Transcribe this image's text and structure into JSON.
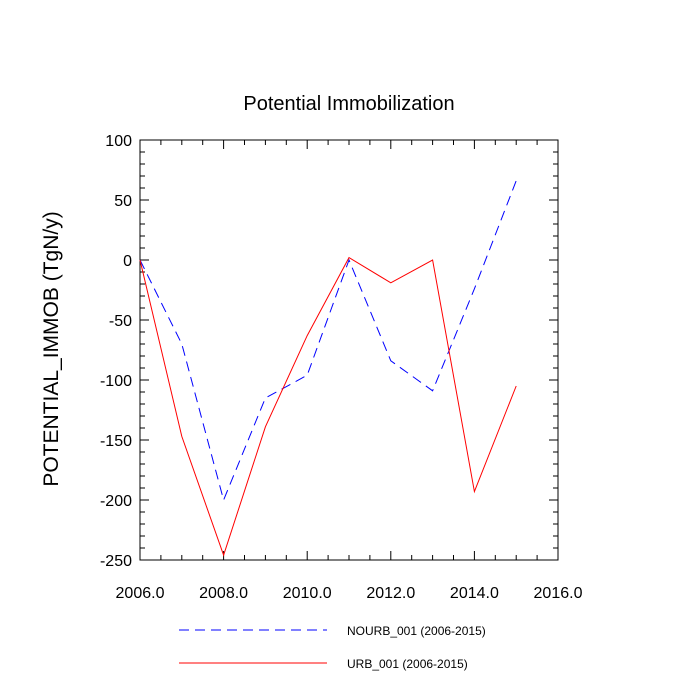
{
  "chart_data": {
    "type": "line",
    "title": "Potential Immobilization",
    "xlabel": "",
    "ylabel": "POTENTIAL_IMMOB  (TgN/y)",
    "xlim": [
      2006,
      2016
    ],
    "ylim": [
      -250,
      100
    ],
    "x_ticks": [
      "2006.0",
      "2008.0",
      "2010.0",
      "2012.0",
      "2014.0",
      "2016.0"
    ],
    "y_ticks": [
      "100",
      "50",
      "0",
      "-50",
      "-100",
      "-150",
      "-200",
      "-250"
    ],
    "grid": false,
    "legend_position": "bottom",
    "x": [
      2006,
      2007,
      2008,
      2009,
      2010,
      2011,
      2012,
      2013,
      2014,
      2015
    ],
    "series": [
      {
        "name": "NOURB_001 (2006-2015)",
        "color": "#0000ff",
        "dash": "dashed",
        "values": [
          0,
          -70,
          -200,
          -115,
          -96,
          0,
          -84,
          -109,
          -24,
          66
        ]
      },
      {
        "name": "URB_001 (2006-2015)",
        "color": "#ff0000",
        "dash": "solid",
        "values": [
          0,
          -147,
          -246,
          -139,
          -63,
          2,
          -19,
          0,
          -193,
          -105
        ]
      }
    ]
  }
}
